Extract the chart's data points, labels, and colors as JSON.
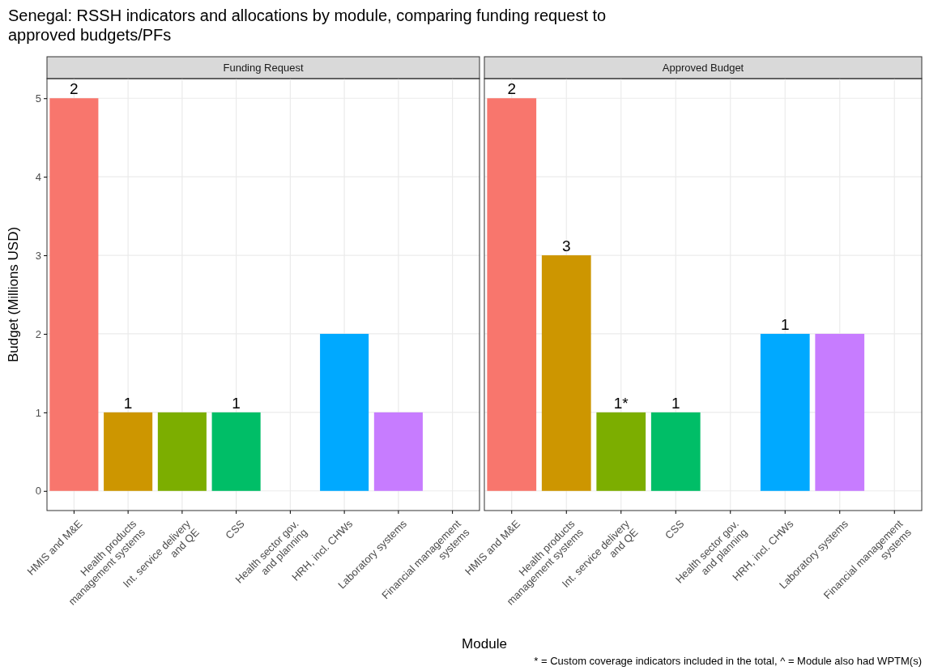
{
  "chart_data": [
    {
      "type": "bar",
      "title": "Funding Request",
      "xlabel": "Module",
      "ylabel": "Budget (Millions USD)",
      "annotations": [
        "Senegal: RSSH indicators and allocations by module, comparing funding request to\napproved budgets/PFs",
        {
          "text": "2",
          "x": "HMIS and M&E",
          "y": 5
        },
        {
          "text": "1",
          "x": "Health products\nmanagement systems",
          "y": 1
        },
        {
          "text": "1",
          "x": "CSS",
          "y": 1
        }
      ],
      "categories": [
        "HMIS and M&E",
        "Health products\nmanagement systems",
        "Int. service delivery\nand QE",
        "CSS",
        "Health sector gov.\nand planning",
        "HRH, incl. CHWs",
        "Laboratory systems",
        "Financial management\nsystems"
      ],
      "values": [
        5,
        1,
        1,
        1,
        null,
        2,
        1,
        null
      ],
      "colors": [
        "#f8766d",
        "#cd9600",
        "#7cae00",
        "#00be67",
        null,
        "#00a9ff",
        "#c77cff",
        null
      ],
      "ylim": [
        -0.25,
        5.25
      ],
      "yticks": [
        0,
        1,
        2,
        3,
        4,
        5
      ],
      "grid": true
    },
    {
      "type": "bar",
      "title": "Approved Budget",
      "annotations": [
        "* = Custom coverage indicators included in the total, ^ = Module also had WPTM(s)",
        {
          "text": "2",
          "x": "HMIS and M&E",
          "y": 5
        },
        {
          "text": "3",
          "x": "Health products\nmanagement systems",
          "y": 3
        },
        {
          "text": "1*",
          "x": "Int. service delivery\nand QE",
          "y": 1
        },
        {
          "text": "1",
          "x": "CSS",
          "y": 1
        },
        {
          "text": "1",
          "x": "HRH, incl. CHWs",
          "y": 2
        }
      ],
      "categories": [
        "HMIS and M&E",
        "Health products\nmanagement systems",
        "Int. service delivery\nand QE",
        "CSS",
        "Health sector gov.\nand planning",
        "HRH, incl. CHWs",
        "Laboratory systems",
        "Financial management\nsystems"
      ],
      "values": [
        5,
        3,
        1,
        1,
        null,
        2,
        2,
        null
      ],
      "colors": [
        "#f8766d",
        "#cd9600",
        "#7cae00",
        "#00be67",
        null,
        "#00a9ff",
        "#c77cff",
        null
      ],
      "ylim": [
        -0.25,
        5.25
      ],
      "yticks": [
        0,
        1,
        2,
        3,
        4,
        5
      ],
      "grid": true,
      "tick_labels": "x"
    }
  ]
}
